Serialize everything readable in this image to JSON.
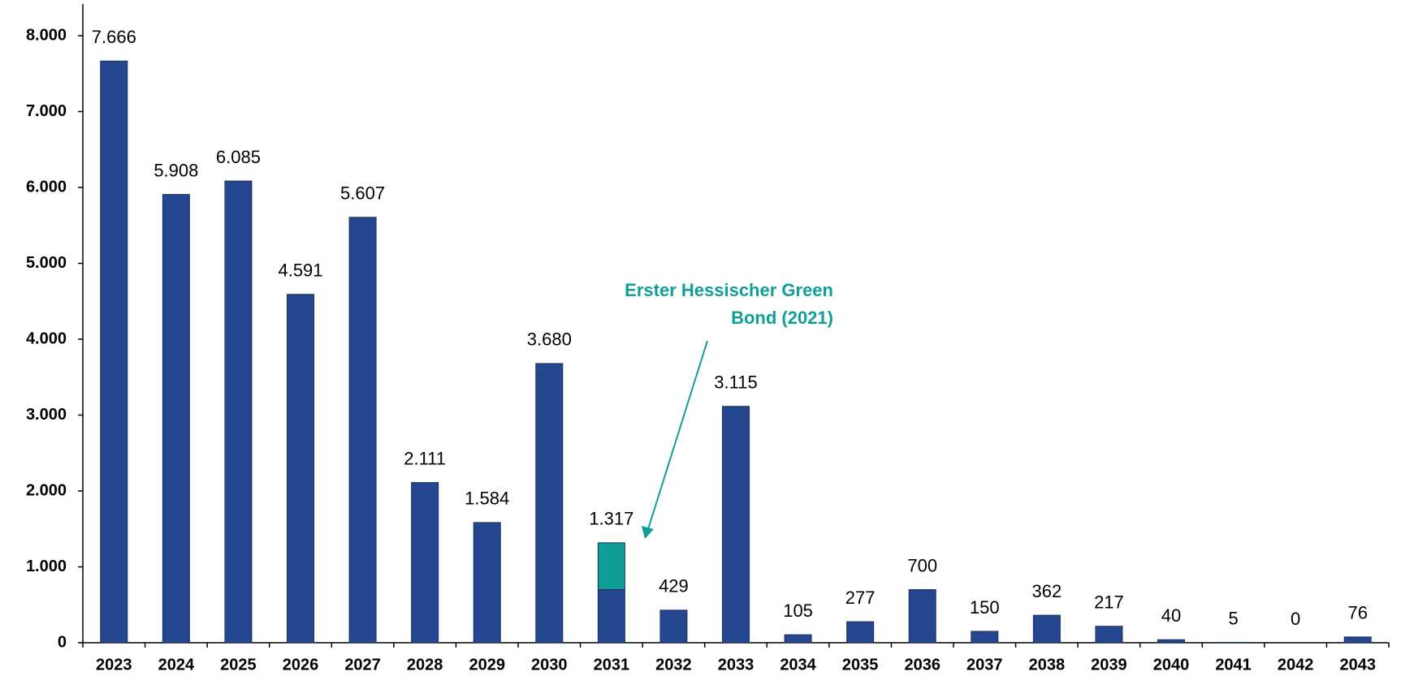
{
  "chart_data": {
    "type": "bar",
    "categories": [
      "2023",
      "2024",
      "2025",
      "2026",
      "2027",
      "2028",
      "2029",
      "2030",
      "2031",
      "2032",
      "2033",
      "2034",
      "2035",
      "2036",
      "2037",
      "2038",
      "2039",
      "2040",
      "2041",
      "2042",
      "2043"
    ],
    "series": [
      {
        "color": "#25478f",
        "values": [
          7666,
          5908,
          6085,
          4591,
          5607,
          2111,
          1584,
          3680,
          700,
          429,
          3115,
          105,
          277,
          700,
          150,
          362,
          217,
          40,
          5,
          0,
          76
        ]
      },
      {
        "color": "#109e98",
        "values": [
          null,
          null,
          null,
          null,
          null,
          null,
          null,
          null,
          617,
          null,
          null,
          null,
          null,
          null,
          null,
          null,
          null,
          null,
          null,
          null,
          null
        ]
      }
    ],
    "totals": [
      7666,
      5908,
      6085,
      4591,
      5607,
      2111,
      1584,
      3680,
      1317,
      429,
      3115,
      105,
      277,
      700,
      150,
      362,
      217,
      40,
      5,
      0,
      76
    ],
    "value_labels": [
      "7.666",
      "5.908",
      "6.085",
      "4.591",
      "5.607",
      "2.111",
      "1.584",
      "3.680",
      "1.317",
      "429",
      "3.115",
      "105",
      "277",
      "700",
      "150",
      "362",
      "217",
      "40",
      "5",
      "0",
      "76"
    ],
    "ylim": [
      0,
      8000
    ],
    "yticks": [
      0,
      {
        "value": 1000,
        "label": "1.000"
      },
      {
        "value": 2000,
        "label": "2.000"
      },
      {
        "value": 3000,
        "label": "3.000"
      },
      {
        "value": 4000,
        "label": "4.000"
      },
      {
        "value": 5000,
        "label": "5.000"
      },
      {
        "value": 6000,
        "label": "6.000"
      },
      {
        "value": 7000,
        "label": "7.000"
      },
      {
        "value": 8000,
        "label": "8.000"
      }
    ],
    "annotation": {
      "lines": [
        "Erster Hessischer Green",
        "Bond (2021)"
      ],
      "color": "#109e98"
    }
  }
}
